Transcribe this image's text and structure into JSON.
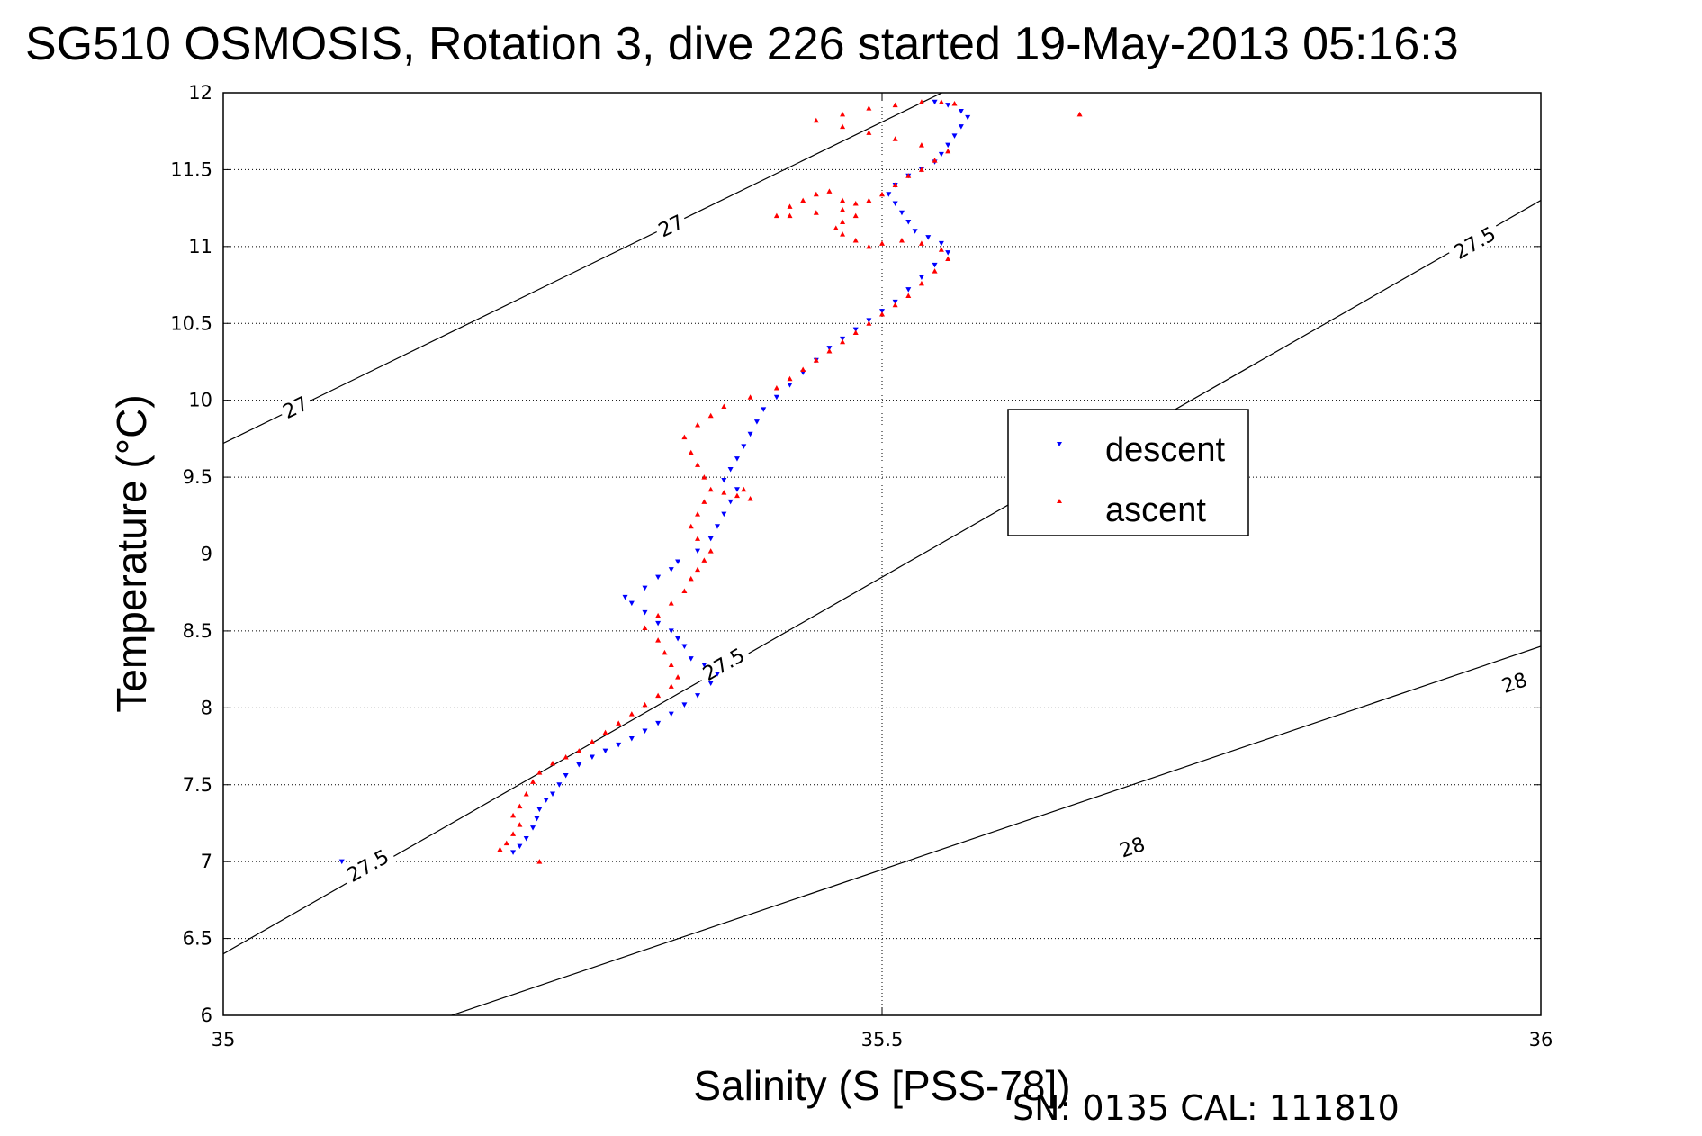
{
  "chart_data": {
    "type": "scatter",
    "title": "SG510 OSMOSIS, Rotation 3, dive 226 started 19-May-2013 05:16:3",
    "xlabel": "Salinity (S [PSS-78])",
    "ylabel": "Temperature (°C)",
    "xlim": [
      35,
      36
    ],
    "ylim": [
      6,
      12
    ],
    "x_ticks": [
      "35",
      "35.5",
      "36"
    ],
    "y_ticks": [
      "6",
      "6.5",
      "7",
      "7.5",
      "8",
      "8.5",
      "9",
      "9.5",
      "10",
      "10.5",
      "11",
      "11.5",
      "12"
    ],
    "grid": true,
    "legend_position": "center-right",
    "series": [
      {
        "name": "descent",
        "marker": "triangle-down",
        "color": "#0000ff",
        "points": [
          [
            35.22,
            7.06
          ],
          [
            35.225,
            7.1
          ],
          [
            35.23,
            7.15
          ],
          [
            35.235,
            7.22
          ],
          [
            35.238,
            7.28
          ],
          [
            35.24,
            7.34
          ],
          [
            35.245,
            7.4
          ],
          [
            35.25,
            7.44
          ],
          [
            35.255,
            7.5
          ],
          [
            35.26,
            7.56
          ],
          [
            35.27,
            7.63
          ],
          [
            35.28,
            7.68
          ],
          [
            35.29,
            7.72
          ],
          [
            35.3,
            7.76
          ],
          [
            35.31,
            7.8
          ],
          [
            35.32,
            7.85
          ],
          [
            35.33,
            7.9
          ],
          [
            35.34,
            7.96
          ],
          [
            35.35,
            8.02
          ],
          [
            35.36,
            8.08
          ],
          [
            35.37,
            8.16
          ],
          [
            35.375,
            8.22
          ],
          [
            35.365,
            8.28
          ],
          [
            35.355,
            8.32
          ],
          [
            35.35,
            8.4
          ],
          [
            35.345,
            8.45
          ],
          [
            35.34,
            8.5
          ],
          [
            35.33,
            8.55
          ],
          [
            35.32,
            8.62
          ],
          [
            35.31,
            8.68
          ],
          [
            35.305,
            8.72
          ],
          [
            35.32,
            8.78
          ],
          [
            35.33,
            8.85
          ],
          [
            35.34,
            8.9
          ],
          [
            35.345,
            8.95
          ],
          [
            35.36,
            9.02
          ],
          [
            35.37,
            9.1
          ],
          [
            35.375,
            9.18
          ],
          [
            35.38,
            9.26
          ],
          [
            35.385,
            9.34
          ],
          [
            35.39,
            9.42
          ],
          [
            35.38,
            9.48
          ],
          [
            35.385,
            9.55
          ],
          [
            35.39,
            9.62
          ],
          [
            35.395,
            9.7
          ],
          [
            35.4,
            9.78
          ],
          [
            35.405,
            9.86
          ],
          [
            35.41,
            9.94
          ],
          [
            35.42,
            10.02
          ],
          [
            35.43,
            10.1
          ],
          [
            35.44,
            10.18
          ],
          [
            35.45,
            10.26
          ],
          [
            35.46,
            10.34
          ],
          [
            35.47,
            10.4
          ],
          [
            35.48,
            10.46
          ],
          [
            35.49,
            10.52
          ],
          [
            35.5,
            10.58
          ],
          [
            35.51,
            10.64
          ],
          [
            35.52,
            10.72
          ],
          [
            35.53,
            10.8
          ],
          [
            35.54,
            10.88
          ],
          [
            35.55,
            10.96
          ],
          [
            35.545,
            11.02
          ],
          [
            35.535,
            11.06
          ],
          [
            35.525,
            11.1
          ],
          [
            35.52,
            11.16
          ],
          [
            35.515,
            11.22
          ],
          [
            35.51,
            11.28
          ],
          [
            35.505,
            11.34
          ],
          [
            35.51,
            11.4
          ],
          [
            35.52,
            11.46
          ],
          [
            35.53,
            11.5
          ],
          [
            35.54,
            11.55
          ],
          [
            35.545,
            11.6
          ],
          [
            35.55,
            11.66
          ],
          [
            35.555,
            11.72
          ],
          [
            35.56,
            11.78
          ],
          [
            35.565,
            11.84
          ],
          [
            35.56,
            11.88
          ],
          [
            35.55,
            11.92
          ],
          [
            35.54,
            11.94
          ],
          [
            35.09,
            7.0
          ]
        ]
      },
      {
        "name": "ascent",
        "marker": "triangle-up",
        "color": "#ff0000",
        "points": [
          [
            35.21,
            7.08
          ],
          [
            35.215,
            7.12
          ],
          [
            35.22,
            7.18
          ],
          [
            35.225,
            7.24
          ],
          [
            35.22,
            7.3
          ],
          [
            35.225,
            7.36
          ],
          [
            35.23,
            7.44
          ],
          [
            35.235,
            7.52
          ],
          [
            35.24,
            7.58
          ],
          [
            35.25,
            7.64
          ],
          [
            35.26,
            7.68
          ],
          [
            35.27,
            7.72
          ],
          [
            35.28,
            7.78
          ],
          [
            35.29,
            7.84
          ],
          [
            35.3,
            7.9
          ],
          [
            35.31,
            7.96
          ],
          [
            35.32,
            8.02
          ],
          [
            35.33,
            8.08
          ],
          [
            35.34,
            8.14
          ],
          [
            35.345,
            8.2
          ],
          [
            35.34,
            8.28
          ],
          [
            35.335,
            8.36
          ],
          [
            35.33,
            8.44
          ],
          [
            35.32,
            8.52
          ],
          [
            35.33,
            8.6
          ],
          [
            35.34,
            8.68
          ],
          [
            35.35,
            8.76
          ],
          [
            35.355,
            8.84
          ],
          [
            35.36,
            8.9
          ],
          [
            35.365,
            8.96
          ],
          [
            35.37,
            9.02
          ],
          [
            35.36,
            9.1
          ],
          [
            35.355,
            9.18
          ],
          [
            35.36,
            9.26
          ],
          [
            35.365,
            9.34
          ],
          [
            35.37,
            9.42
          ],
          [
            35.38,
            9.4
          ],
          [
            35.39,
            9.38
          ],
          [
            35.395,
            9.42
          ],
          [
            35.4,
            9.36
          ],
          [
            35.365,
            9.5
          ],
          [
            35.36,
            9.58
          ],
          [
            35.355,
            9.66
          ],
          [
            35.35,
            9.76
          ],
          [
            35.36,
            9.84
          ],
          [
            35.37,
            9.9
          ],
          [
            35.38,
            9.96
          ],
          [
            35.4,
            10.02
          ],
          [
            35.42,
            10.08
          ],
          [
            35.43,
            10.14
          ],
          [
            35.44,
            10.2
          ],
          [
            35.45,
            10.26
          ],
          [
            35.46,
            10.32
          ],
          [
            35.47,
            10.38
          ],
          [
            35.48,
            10.44
          ],
          [
            35.49,
            10.5
          ],
          [
            35.5,
            10.56
          ],
          [
            35.51,
            10.62
          ],
          [
            35.52,
            10.68
          ],
          [
            35.53,
            10.76
          ],
          [
            35.54,
            10.84
          ],
          [
            35.55,
            10.92
          ],
          [
            35.545,
            10.98
          ],
          [
            35.53,
            11.02
          ],
          [
            35.515,
            11.04
          ],
          [
            35.5,
            11.02
          ],
          [
            35.49,
            11.0
          ],
          [
            35.48,
            11.04
          ],
          [
            35.47,
            11.08
          ],
          [
            35.465,
            11.12
          ],
          [
            35.47,
            11.16
          ],
          [
            35.48,
            11.2
          ],
          [
            35.47,
            11.24
          ],
          [
            35.45,
            11.22
          ],
          [
            35.43,
            11.2
          ],
          [
            35.42,
            11.2
          ],
          [
            35.43,
            11.26
          ],
          [
            35.44,
            11.3
          ],
          [
            35.45,
            11.34
          ],
          [
            35.46,
            11.36
          ],
          [
            35.47,
            11.3
          ],
          [
            35.48,
            11.28
          ],
          [
            35.49,
            11.3
          ],
          [
            35.5,
            11.34
          ],
          [
            35.51,
            11.4
          ],
          [
            35.52,
            11.46
          ],
          [
            35.53,
            11.5
          ],
          [
            35.54,
            11.56
          ],
          [
            35.55,
            11.62
          ],
          [
            35.53,
            11.66
          ],
          [
            35.51,
            11.7
          ],
          [
            35.49,
            11.74
          ],
          [
            35.47,
            11.78
          ],
          [
            35.45,
            11.82
          ],
          [
            35.47,
            11.86
          ],
          [
            35.49,
            11.9
          ],
          [
            35.51,
            11.92
          ],
          [
            35.53,
            11.94
          ],
          [
            35.545,
            11.94
          ],
          [
            35.555,
            11.93
          ],
          [
            35.65,
            11.86
          ],
          [
            35.24,
            7.0
          ]
        ]
      }
    ],
    "isopycnals": [
      {
        "label": "27",
        "points": [
          [
            35.0,
            9.72
          ],
          [
            36.0,
            13.9
          ]
        ],
        "label_positions": [
          [
            35.055,
            9.95
          ],
          [
            35.34,
            11.13
          ]
        ]
      },
      {
        "label": "27.5",
        "points": [
          [
            35.0,
            6.4
          ],
          [
            36.0,
            11.3
          ]
        ],
        "label_positions": [
          [
            35.11,
            6.97
          ],
          [
            35.38,
            8.28
          ],
          [
            35.95,
            11.02
          ]
        ]
      },
      {
        "label": "28",
        "points": [
          [
            35.07,
            5.7
          ],
          [
            36.0,
            8.4
          ]
        ],
        "label_positions": [
          [
            35.69,
            7.09
          ],
          [
            35.98,
            8.16
          ]
        ]
      }
    ]
  },
  "footer": {
    "serial": "SN: 0135  CAL: 111810"
  },
  "colors": {
    "descent": "#0000ff",
    "ascent": "#ff0000",
    "axes": "#000000",
    "background": "#ffffff"
  }
}
